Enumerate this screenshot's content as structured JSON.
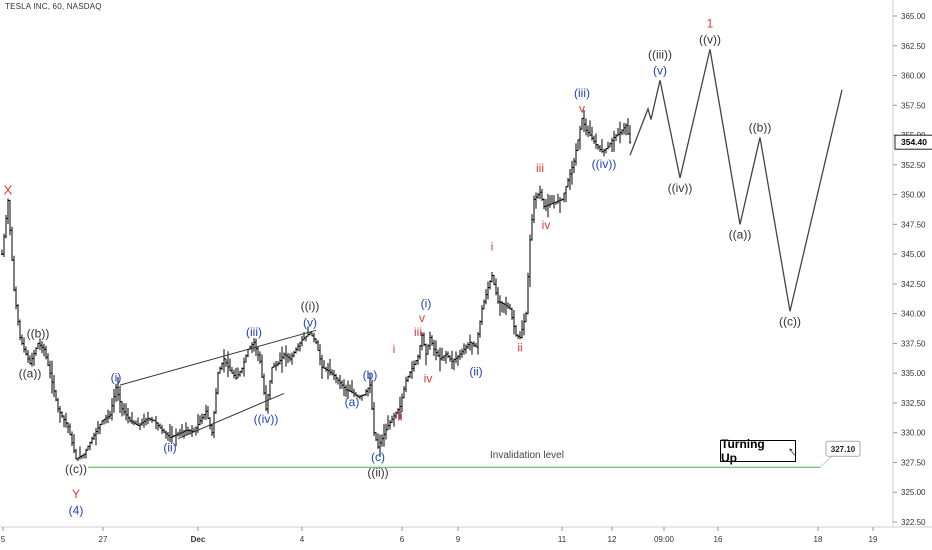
{
  "header": {
    "title": "TESLA INC, 60, NASDAQ"
  },
  "chart_data": {
    "type": "candlestick",
    "price_axis": {
      "ticks": [
        "365.00",
        "362.50",
        "360.00",
        "357.50",
        "355.00",
        "352.50",
        "350.00",
        "347.50",
        "345.00",
        "342.50",
        "340.00",
        "337.50",
        "335.00",
        "332.50",
        "330.00",
        "327.50",
        "325.00",
        "322.50"
      ],
      "ylim": [
        321.5,
        366.5
      ],
      "last_price": "354.40",
      "invalidation_price": "327.10"
    },
    "time_axis": {
      "ticks": [
        "5",
        "27",
        "Dec",
        "4",
        "6",
        "9",
        "11",
        "12",
        "09:00",
        "16",
        "18",
        "19"
      ]
    },
    "invalidation": {
      "label": "Invalidation level",
      "price": 327.1
    },
    "badge": {
      "label": "Turning Up"
    },
    "price_path": [
      {
        "i": 0,
        "p": 345
      },
      {
        "i": 6,
        "p": 349.5
      },
      {
        "i": 12,
        "p": 342
      },
      {
        "i": 18,
        "p": 338
      },
      {
        "i": 22,
        "p": 337
      },
      {
        "i": 28,
        "p": 335.8
      },
      {
        "i": 36,
        "p": 337.5
      },
      {
        "i": 42,
        "p": 337
      },
      {
        "i": 48,
        "p": 335
      },
      {
        "i": 56,
        "p": 332
      },
      {
        "i": 66,
        "p": 330.5
      },
      {
        "i": 74,
        "p": 327.8
      },
      {
        "i": 82,
        "p": 328.2
      },
      {
        "i": 90,
        "p": 329.5
      },
      {
        "i": 100,
        "p": 331
      },
      {
        "i": 108,
        "p": 331.5
      },
      {
        "i": 114,
        "p": 333.8
      },
      {
        "i": 120,
        "p": 332
      },
      {
        "i": 128,
        "p": 331
      },
      {
        "i": 136,
        "p": 330.6
      },
      {
        "i": 146,
        "p": 331.2
      },
      {
        "i": 152,
        "p": 331
      },
      {
        "i": 160,
        "p": 330.2
      },
      {
        "i": 168,
        "p": 329.6
      },
      {
        "i": 176,
        "p": 329.9
      },
      {
        "i": 184,
        "p": 330.2
      },
      {
        "i": 192,
        "p": 330.1
      },
      {
        "i": 198,
        "p": 331
      },
      {
        "i": 204,
        "p": 331.8
      },
      {
        "i": 210,
        "p": 330
      },
      {
        "i": 216,
        "p": 335
      },
      {
        "i": 222,
        "p": 336.2
      },
      {
        "i": 228,
        "p": 335.2
      },
      {
        "i": 234,
        "p": 334.6
      },
      {
        "i": 240,
        "p": 335.4
      },
      {
        "i": 246,
        "p": 337
      },
      {
        "i": 252,
        "p": 337.6
      },
      {
        "i": 258,
        "p": 336
      },
      {
        "i": 264,
        "p": 332
      },
      {
        "i": 270,
        "p": 335.5
      },
      {
        "i": 276,
        "p": 335.8
      },
      {
        "i": 282,
        "p": 336.6
      },
      {
        "i": 288,
        "p": 336.2
      },
      {
        "i": 294,
        "p": 337
      },
      {
        "i": 300,
        "p": 337.8
      },
      {
        "i": 308,
        "p": 338.4
      },
      {
        "i": 314,
        "p": 337.6
      },
      {
        "i": 320,
        "p": 335.5
      },
      {
        "i": 326,
        "p": 335.2
      },
      {
        "i": 332,
        "p": 334.8
      },
      {
        "i": 338,
        "p": 334.2
      },
      {
        "i": 344,
        "p": 333.6
      },
      {
        "i": 350,
        "p": 333.4
      },
      {
        "i": 356,
        "p": 333
      },
      {
        "i": 362,
        "p": 333.2
      },
      {
        "i": 368,
        "p": 334
      },
      {
        "i": 372,
        "p": 330
      },
      {
        "i": 376,
        "p": 328.8
      },
      {
        "i": 380,
        "p": 329.5
      },
      {
        "i": 386,
        "p": 330.6
      },
      {
        "i": 392,
        "p": 331.4
      },
      {
        "i": 398,
        "p": 332.2
      },
      {
        "i": 404,
        "p": 334.4
      },
      {
        "i": 410,
        "p": 335.4
      },
      {
        "i": 416,
        "p": 336.4
      },
      {
        "i": 420,
        "p": 338.2
      },
      {
        "i": 424,
        "p": 336.6
      },
      {
        "i": 428,
        "p": 338
      },
      {
        "i": 432,
        "p": 337
      },
      {
        "i": 438,
        "p": 336.2
      },
      {
        "i": 444,
        "p": 336.6
      },
      {
        "i": 450,
        "p": 336
      },
      {
        "i": 456,
        "p": 336.4
      },
      {
        "i": 462,
        "p": 337
      },
      {
        "i": 468,
        "p": 337.6
      },
      {
        "i": 474,
        "p": 337.2
      },
      {
        "i": 480,
        "p": 340.4
      },
      {
        "i": 486,
        "p": 342.2
      },
      {
        "i": 490,
        "p": 343.2
      },
      {
        "i": 496,
        "p": 341
      },
      {
        "i": 502,
        "p": 340.8
      },
      {
        "i": 508,
        "p": 340.4
      },
      {
        "i": 514,
        "p": 338.2
      },
      {
        "i": 518,
        "p": 338
      },
      {
        "i": 524,
        "p": 340
      },
      {
        "i": 528,
        "p": 346.2
      },
      {
        "i": 532,
        "p": 349.6
      },
      {
        "i": 538,
        "p": 350.2
      },
      {
        "i": 542,
        "p": 349
      },
      {
        "i": 548,
        "p": 349.2
      },
      {
        "i": 554,
        "p": 349.4
      },
      {
        "i": 560,
        "p": 349.6
      },
      {
        "i": 566,
        "p": 351.2
      },
      {
        "i": 572,
        "p": 352.8
      },
      {
        "i": 576,
        "p": 354.6
      },
      {
        "i": 580,
        "p": 356.4
      },
      {
        "i": 584,
        "p": 355.4
      },
      {
        "i": 588,
        "p": 355
      },
      {
        "i": 594,
        "p": 354.2
      },
      {
        "i": 600,
        "p": 353.6
      },
      {
        "i": 606,
        "p": 354
      },
      {
        "i": 612,
        "p": 354.8
      },
      {
        "i": 618,
        "p": 355.2
      },
      {
        "i": 624,
        "p": 355.8
      },
      {
        "i": 628,
        "p": 354.4
      }
    ],
    "projection": [
      {
        "t": "c",
        "p": 353.3
      },
      {
        "t": "((iii))",
        "p": 357.2
      },
      {
        "t": "",
        "p": 356.3
      },
      {
        "t": "((iii))",
        "p": 359.6
      },
      {
        "t": "((iv))",
        "p": 351.4
      },
      {
        "t": "((v))",
        "p": 362.2
      },
      {
        "t": "((a))",
        "p": 347.5
      },
      {
        "t": "((b))",
        "p": 354.8
      },
      {
        "t": "((c))",
        "p": 340.2
      },
      {
        "t": "end",
        "p": 358.8
      }
    ],
    "wave_labels": [
      {
        "text": "X",
        "color": "#e53935",
        "size": 13,
        "i": 6,
        "p": 349.5,
        "pos": "above"
      },
      {
        "text": "((b))",
        "color": "#333333",
        "size": 12,
        "i": 36,
        "p": 337.5,
        "pos": "above"
      },
      {
        "text": "((a))",
        "color": "#333333",
        "size": 12,
        "i": 28,
        "p": 335.8,
        "pos": "below"
      },
      {
        "text": "((c))",
        "color": "#333333",
        "size": 12,
        "i": 74,
        "p": 327.8,
        "pos": "below"
      },
      {
        "text": "Y",
        "color": "#e53935",
        "size": 12,
        "i": 74,
        "p": 325.7,
        "pos": "below"
      },
      {
        "text": "(4)",
        "color": "#1e40c8",
        "size": 12,
        "i": 74,
        "p": 324.3,
        "pos": "below"
      },
      {
        "text": "(i)",
        "color": "#1e40c8",
        "size": 12,
        "i": 114,
        "p": 333.8,
        "pos": "above"
      },
      {
        "text": "(ii)",
        "color": "#1e40c8",
        "size": 12,
        "i": 168,
        "p": 329.6,
        "pos": "below"
      },
      {
        "text": "(iii)",
        "color": "#1e40c8",
        "size": 12,
        "i": 252,
        "p": 337.6,
        "pos": "above"
      },
      {
        "text": "((iv))",
        "color": "#1e40c8",
        "size": 12,
        "i": 264,
        "p": 332,
        "pos": "below"
      },
      {
        "text": "(v)",
        "color": "#1e40c8",
        "size": 12,
        "i": 308,
        "p": 338.4,
        "pos": "above"
      },
      {
        "text": "((i))",
        "color": "#333333",
        "size": 12,
        "i": 308,
        "p": 339.8,
        "pos": "above"
      },
      {
        "text": "(a)",
        "color": "#1e40c8",
        "size": 12,
        "i": 350,
        "p": 333.4,
        "pos": "below"
      },
      {
        "text": "(b)",
        "color": "#1e40c8",
        "size": 12,
        "i": 368,
        "p": 334,
        "pos": "above"
      },
      {
        "text": "(c)",
        "color": "#1e40c8",
        "size": 12,
        "i": 376,
        "p": 328.8,
        "pos": "below"
      },
      {
        "text": "((ii))",
        "color": "#333333",
        "size": 12,
        "i": 376,
        "p": 327.5,
        "pos": "below"
      },
      {
        "text": "i",
        "color": "#e53935",
        "size": 12,
        "i": 392,
        "p": 336.2,
        "pos": "above"
      },
      {
        "text": "ii",
        "color": "#e53935",
        "size": 12,
        "i": 398,
        "p": 332.2,
        "pos": "below"
      },
      {
        "text": "iii",
        "color": "#e53935",
        "size": 12,
        "i": 416,
        "p": 337.6,
        "pos": "above"
      },
      {
        "text": "v",
        "color": "#e53935",
        "size": 12,
        "i": 420,
        "p": 338.8,
        "pos": "above"
      },
      {
        "text": "(i)",
        "color": "#1e40c8",
        "size": 12,
        "i": 424,
        "p": 340,
        "pos": "above"
      },
      {
        "text": "iv",
        "color": "#e53935",
        "size": 12,
        "i": 426,
        "p": 335.4,
        "pos": "below"
      },
      {
        "text": "(ii)",
        "color": "#1e40c8",
        "size": 12,
        "i": 474,
        "p": 336,
        "pos": "below"
      },
      {
        "text": "i",
        "color": "#e53935",
        "size": 12,
        "i": 490,
        "p": 344.8,
        "pos": "above"
      },
      {
        "text": "ii",
        "color": "#e53935",
        "size": 12,
        "i": 518,
        "p": 338,
        "pos": "below"
      },
      {
        "text": "iii",
        "color": "#e53935",
        "size": 12,
        "i": 538,
        "p": 351.4,
        "pos": "above"
      },
      {
        "text": "iv",
        "color": "#e53935",
        "size": 12,
        "i": 544,
        "p": 348.3,
        "pos": "below"
      },
      {
        "text": "v",
        "color": "#e53935",
        "size": 12,
        "i": 580,
        "p": 356.4,
        "pos": "above"
      },
      {
        "text": "(iii)",
        "color": "#1e40c8",
        "size": 12,
        "i": 580,
        "p": 357.7,
        "pos": "above"
      },
      {
        "text": "((iv))",
        "color": "#1e40c8",
        "size": 12,
        "i": 602,
        "p": 353.4,
        "pos": "below"
      }
    ],
    "projection_labels": [
      {
        "text": "((iii))",
        "color": "#333333",
        "k": 3,
        "pos": "above",
        "dy": -16
      },
      {
        "text": "(v)",
        "color": "#1e40c8",
        "k": 3,
        "pos": "above",
        "dy": 0
      },
      {
        "text": "((iv))",
        "color": "#333333",
        "k": 4,
        "pos": "below"
      },
      {
        "text": "1",
        "color": "#e53935",
        "k": 5,
        "pos": "above",
        "dy": -16
      },
      {
        "text": "((v))",
        "color": "#333333",
        "k": 5,
        "pos": "above",
        "dy": 0
      },
      {
        "text": "((a))",
        "color": "#333333",
        "k": 6,
        "pos": "below"
      },
      {
        "text": "((b))",
        "color": "#333333",
        "k": 7,
        "pos": "above"
      },
      {
        "text": "((c))",
        "color": "#333333",
        "k": 8,
        "pos": "below"
      }
    ],
    "colors": {
      "candle": "#000000",
      "projection": "#444444",
      "invalidation": "#4caf50",
      "grid_axis": "#cfcfcf"
    },
    "log_scale": false,
    "grid": false
  }
}
